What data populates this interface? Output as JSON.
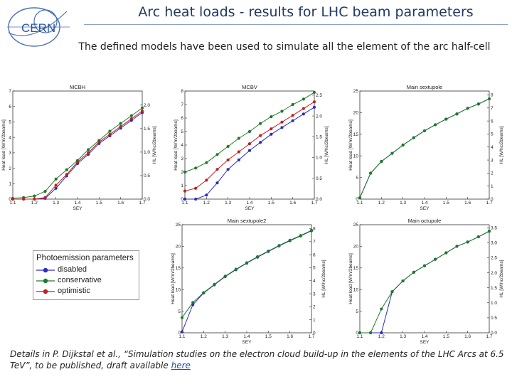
{
  "header": {
    "title": "Arc heat loads - results for LHC beam parameters",
    "subtitle": "The defined models have been used to simulate all the element of the arc half-cell",
    "logo_text": "CERN"
  },
  "legend": {
    "title": "Photoemission parameters",
    "items": [
      {
        "label": "disabled",
        "color": "#2b2bc0"
      },
      {
        "label": "conservative",
        "color": "#1e7a28"
      },
      {
        "label": "optimistic",
        "color": "#c02020"
      }
    ]
  },
  "footer": {
    "text": "Details in P. Dijkstal et al., “Simulation studies on the electron cloud build-up in the elements of the LHC Arcs at 6.5 TeV”, to be published, draft available ",
    "link_text": "here"
  },
  "colors": {
    "disabled": "#2b2bc0",
    "conservative": "#1e7a28",
    "optimistic": "#c02020"
  },
  "chart_data": [
    {
      "type": "line",
      "title": "MCBH",
      "xlabel": "SEY",
      "ylabel": "Heat load [W/m/2beams]",
      "y2label": "HL [W/hc/2beams]",
      "xlim": [
        1.1,
        1.7
      ],
      "ylim": [
        0,
        7
      ],
      "y2lim": [
        0,
        2.3
      ],
      "xticks": [
        "1.1",
        "1.2",
        "1.3",
        "1.4",
        "1.5",
        "1.6",
        "1.7"
      ],
      "yticks": [
        "0",
        "1",
        "2",
        "3",
        "4",
        "5",
        "6",
        "7"
      ],
      "y2ticks": [
        "0.0",
        "0.5",
        "1.0",
        "1.5",
        "2.0"
      ],
      "y2tick_values": [
        0,
        0.5,
        1.0,
        1.5,
        2.0
      ],
      "x": [
        1.1,
        1.15,
        1.2,
        1.25,
        1.3,
        1.35,
        1.4,
        1.45,
        1.5,
        1.55,
        1.6,
        1.65,
        1.7
      ],
      "series": [
        {
          "name": "disabled",
          "values": [
            0,
            0,
            0,
            0.05,
            0.7,
            1.5,
            2.3,
            2.9,
            3.6,
            4.1,
            4.6,
            5.1,
            5.6
          ]
        },
        {
          "name": "conservative",
          "values": [
            0.05,
            0.1,
            0.2,
            0.5,
            1.3,
            1.9,
            2.5,
            3.2,
            3.8,
            4.4,
            4.9,
            5.4,
            5.9
          ]
        },
        {
          "name": "optimistic",
          "values": [
            0,
            0,
            0,
            0.1,
            0.9,
            1.6,
            2.4,
            3.0,
            3.7,
            4.2,
            4.7,
            5.2,
            5.7
          ]
        }
      ]
    },
    {
      "type": "line",
      "title": "MCBV",
      "xlabel": "SEY",
      "ylabel": "Heat load [W/m/2beams]",
      "y2label": "HL [W/hc/2beams]",
      "xlim": [
        1.1,
        1.7
      ],
      "ylim": [
        0,
        8
      ],
      "y2lim": [
        0,
        2.6
      ],
      "xticks": [
        "1.1",
        "1.2",
        "1.3",
        "1.4",
        "1.5",
        "1.6",
        "1.7"
      ],
      "yticks": [
        "0",
        "1",
        "2",
        "3",
        "4",
        "5",
        "6",
        "7",
        "8"
      ],
      "y2ticks": [
        "0.0",
        "0.5",
        "1.0",
        "1.5",
        "2.0",
        "2.5"
      ],
      "y2tick_values": [
        0,
        0.5,
        1.0,
        1.5,
        2.0,
        2.5
      ],
      "x": [
        1.1,
        1.15,
        1.2,
        1.25,
        1.3,
        1.35,
        1.4,
        1.45,
        1.5,
        1.55,
        1.6,
        1.65,
        1.7
      ],
      "series": [
        {
          "name": "disabled",
          "values": [
            0,
            0,
            0.3,
            1.2,
            2.2,
            2.9,
            3.6,
            4.2,
            4.8,
            5.3,
            5.8,
            6.3,
            6.8
          ]
        },
        {
          "name": "conservative",
          "values": [
            2.0,
            2.3,
            2.7,
            3.3,
            3.9,
            4.5,
            5.0,
            5.6,
            6.1,
            6.5,
            7.0,
            7.4,
            7.9
          ]
        },
        {
          "name": "optimistic",
          "values": [
            0.6,
            0.8,
            1.4,
            2.2,
            2.9,
            3.5,
            4.1,
            4.7,
            5.2,
            5.7,
            6.2,
            6.7,
            7.2
          ]
        }
      ]
    },
    {
      "type": "line",
      "title": "Main sextupole",
      "xlabel": "SEY",
      "ylabel": "Heat load [W/m/2beams]",
      "y2label": "HL [W/hc/2beams]",
      "xlim": [
        1.1,
        1.7
      ],
      "ylim": [
        0,
        25
      ],
      "y2lim": [
        0,
        8.3
      ],
      "xticks": [
        "1.1",
        "1.2",
        "1.3",
        "1.4",
        "1.5",
        "1.6",
        "1.7"
      ],
      "yticks": [
        "0",
        "5",
        "10",
        "15",
        "20",
        "25"
      ],
      "y2ticks": [
        "0",
        "1",
        "2",
        "3",
        "4",
        "5",
        "6",
        "7",
        "8"
      ],
      "y2tick_values": [
        0,
        1,
        2,
        3,
        4,
        5,
        6,
        7,
        8
      ],
      "x": [
        1.1,
        1.15,
        1.2,
        1.25,
        1.3,
        1.35,
        1.4,
        1.45,
        1.5,
        1.55,
        1.6,
        1.65,
        1.7
      ],
      "series": [
        {
          "name": "disabled",
          "values": [
            0.3,
            6.0,
            8.7,
            10.6,
            12.5,
            14.2,
            15.8,
            17.2,
            18.5,
            19.7,
            21.0,
            22.0,
            23.2
          ]
        },
        {
          "name": "conservative",
          "values": [
            0.3,
            6.0,
            8.7,
            10.6,
            12.5,
            14.2,
            15.8,
            17.2,
            18.5,
            19.7,
            21.0,
            22.0,
            23.2
          ]
        }
      ]
    },
    {
      "type": "line",
      "title": "Main sextupole2",
      "xlabel": "SEY",
      "ylabel": "Heat load [W/m/2beams]",
      "y2label": "HL [W/hc/2beams]",
      "xlim": [
        1.1,
        1.7
      ],
      "ylim": [
        0,
        25
      ],
      "y2lim": [
        0,
        8.3
      ],
      "xticks": [
        "1.1",
        "1.2",
        "1.3",
        "1.4",
        "1.5",
        "1.6",
        "1.7"
      ],
      "yticks": [
        "0",
        "5",
        "10",
        "15",
        "20",
        "25"
      ],
      "y2ticks": [
        "0",
        "1",
        "2",
        "3",
        "4",
        "5",
        "6",
        "7",
        "8"
      ],
      "y2tick_values": [
        0,
        1,
        2,
        3,
        4,
        5,
        6,
        7,
        8
      ],
      "x": [
        1.1,
        1.15,
        1.2,
        1.25,
        1.3,
        1.35,
        1.4,
        1.45,
        1.5,
        1.55,
        1.6,
        1.65,
        1.7
      ],
      "series": [
        {
          "name": "disabled",
          "values": [
            0.2,
            6.5,
            9.2,
            11.1,
            13.0,
            14.6,
            16.1,
            17.5,
            18.8,
            20.1,
            21.3,
            22.4,
            23.6
          ]
        },
        {
          "name": "conservative",
          "values": [
            3.5,
            7.0,
            9.3,
            11.2,
            13.1,
            14.7,
            16.2,
            17.6,
            18.9,
            20.2,
            21.4,
            22.5,
            23.7
          ]
        }
      ]
    },
    {
      "type": "line",
      "title": "Main octupole",
      "xlabel": "SEY",
      "ylabel": "Heat load [W/m/2beams]",
      "y2label": "HL [W/hc/2beams]",
      "xlim": [
        1.1,
        1.7
      ],
      "ylim": [
        0,
        25
      ],
      "y2lim": [
        0,
        3.6
      ],
      "xticks": [
        "1.1",
        "1.2",
        "1.3",
        "1.4",
        "1.5",
        "1.6",
        "1.7"
      ],
      "yticks": [
        "0",
        "5",
        "10",
        "15",
        "20",
        "25"
      ],
      "y2ticks": [
        "0.0",
        "0.5",
        "1.0",
        "1.5",
        "2.0",
        "2.5",
        "3.0",
        "3.5"
      ],
      "y2tick_values": [
        0,
        0.5,
        1.0,
        1.5,
        2.0,
        2.5,
        3.0,
        3.5
      ],
      "x": [
        1.1,
        1.15,
        1.2,
        1.25,
        1.3,
        1.35,
        1.4,
        1.45,
        1.5,
        1.55,
        1.6,
        1.65,
        1.7
      ],
      "series": [
        {
          "name": "disabled",
          "values": [
            0,
            0,
            0,
            9.5,
            12.0,
            14.0,
            15.5,
            17.0,
            18.5,
            20.0,
            21.0,
            22.2,
            23.5
          ]
        },
        {
          "name": "conservative",
          "values": [
            0,
            0,
            5.5,
            9.5,
            12.0,
            14.0,
            15.5,
            17.0,
            18.5,
            20.0,
            21.0,
            22.2,
            23.5
          ]
        }
      ]
    }
  ]
}
